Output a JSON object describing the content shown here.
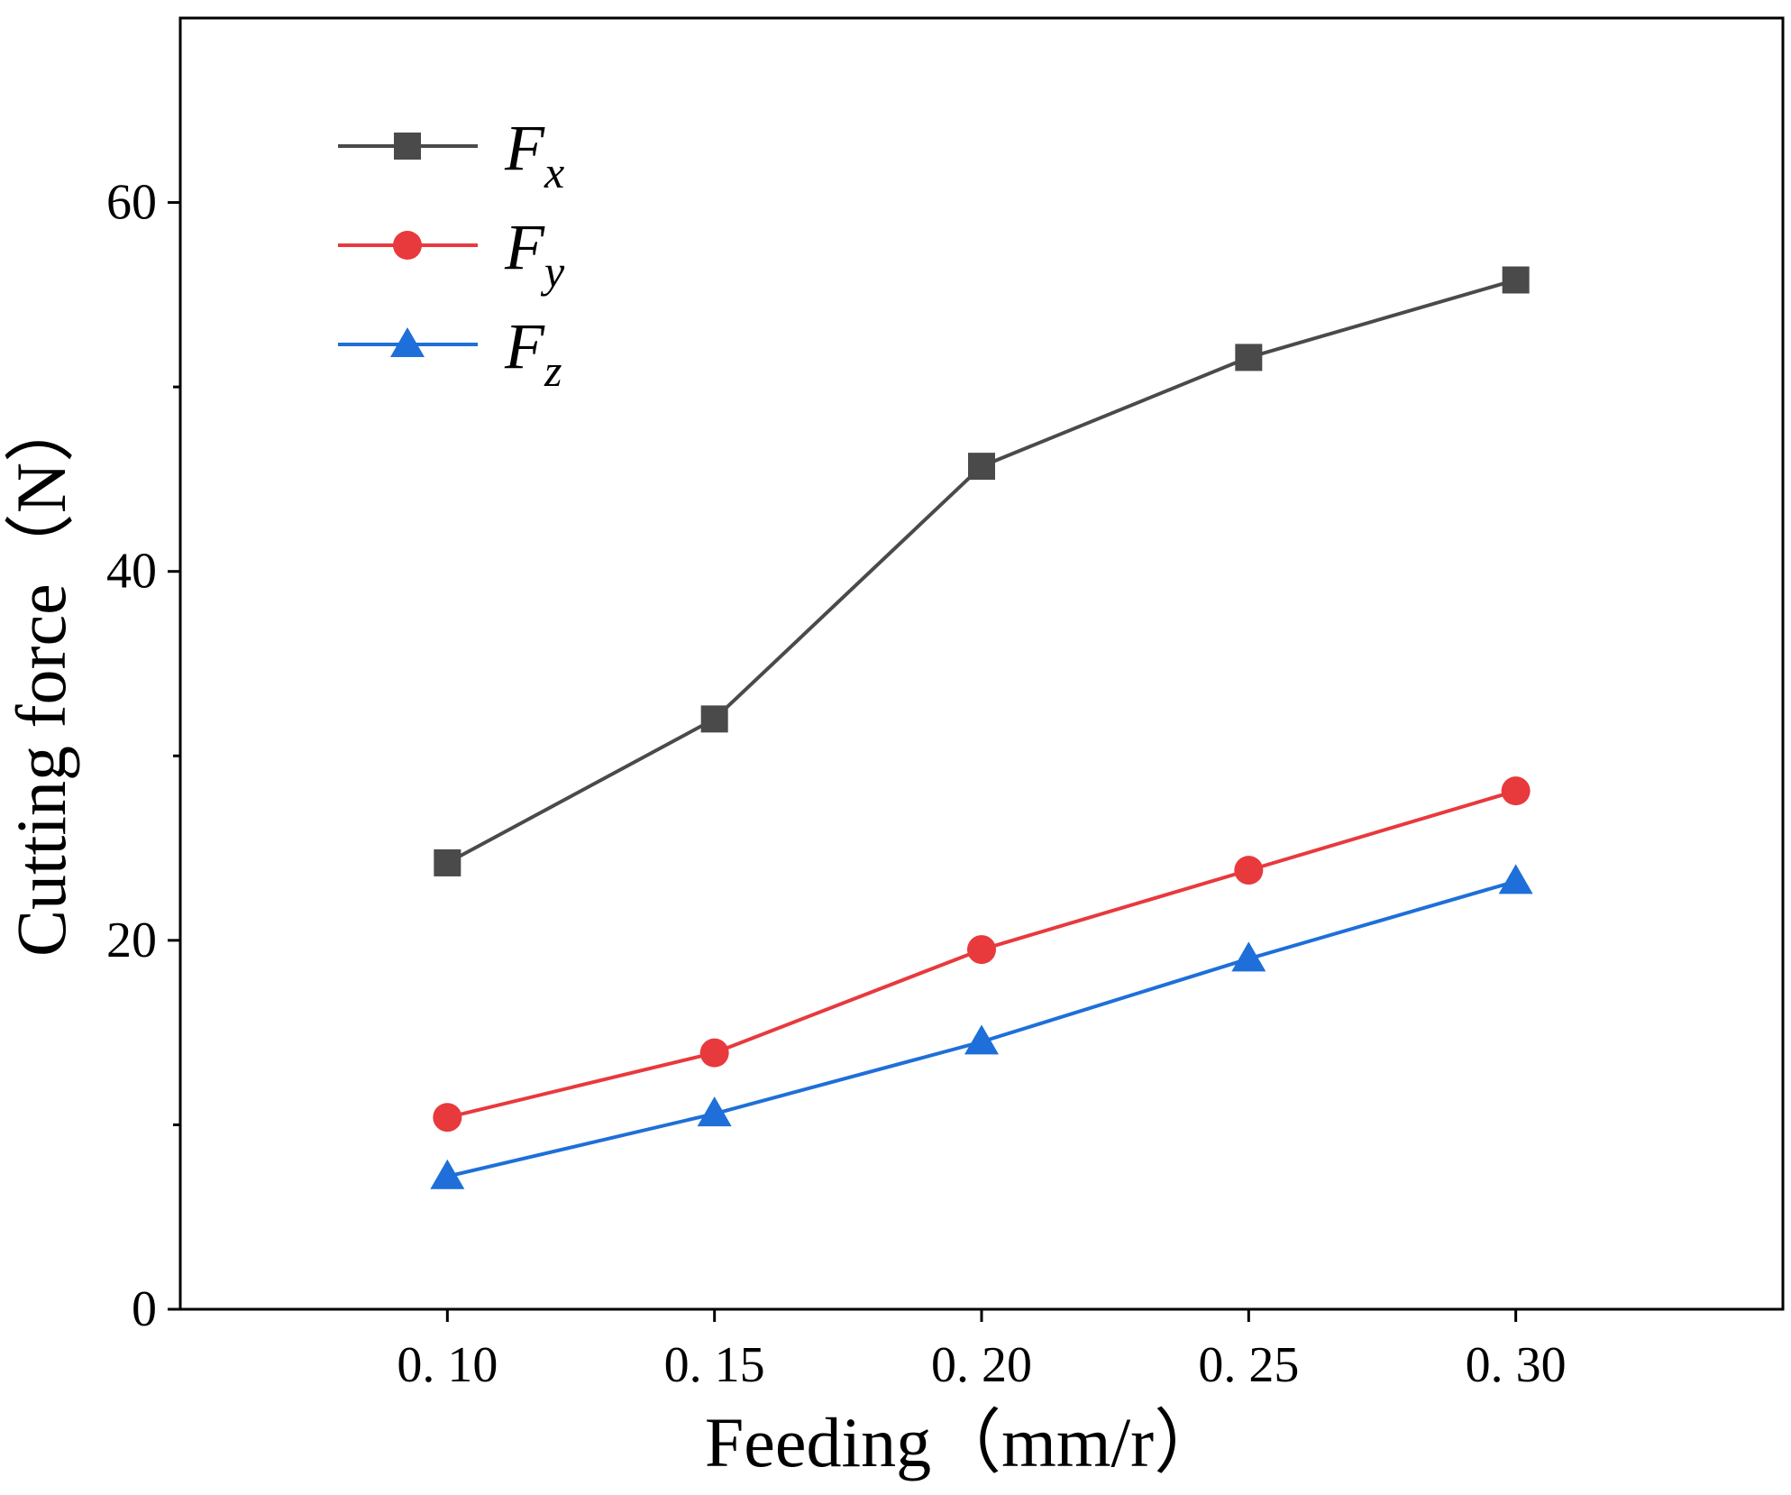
{
  "chart_data": {
    "type": "line",
    "title": "",
    "xlabel": "Feeding（mm/r）",
    "ylabel": "Cutting force（N）",
    "x": [
      0.1,
      0.15,
      0.2,
      0.25,
      0.3
    ],
    "x_tick_labels": [
      "0. 10",
      "0. 15",
      "0. 20",
      "0. 25",
      "0. 30"
    ],
    "xlim": [
      0.05,
      0.35
    ],
    "ylim": [
      0,
      70
    ],
    "y_ticks": [
      0,
      20,
      40,
      60
    ],
    "y_tick_labels": [
      "0",
      "20",
      "40",
      "60"
    ],
    "grid": false,
    "legend_position": "top-left",
    "series": [
      {
        "name": "Fx",
        "legend_main": "F",
        "legend_sub": "x",
        "color": "#4a4a4a",
        "marker": "square",
        "values": [
          24.2,
          32.0,
          45.7,
          51.6,
          55.8
        ]
      },
      {
        "name": "Fy",
        "legend_main": "F",
        "legend_sub": "y",
        "color": "#e8393d",
        "marker": "circle",
        "values": [
          10.4,
          13.9,
          19.5,
          23.8,
          28.1
        ]
      },
      {
        "name": "Fz",
        "legend_main": "F",
        "legend_sub": "z",
        "color": "#1e6fd9",
        "marker": "triangle",
        "values": [
          7.2,
          10.6,
          14.5,
          19.0,
          23.2
        ]
      }
    ]
  }
}
